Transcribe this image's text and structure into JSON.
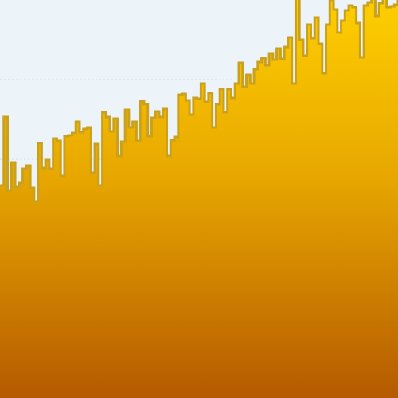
{
  "chart_data": {
    "type": "area",
    "title": "",
    "xlabel": "",
    "ylabel": "",
    "grid": true,
    "legend": "none",
    "ylim": [
      0,
      500
    ],
    "x": [
      0,
      1,
      2,
      3,
      4,
      5,
      6,
      7,
      8,
      9,
      10,
      11,
      12,
      13,
      14,
      15,
      16,
      17,
      18,
      19,
      20,
      21,
      22,
      23,
      24,
      25,
      26,
      27,
      28,
      29,
      30,
      31,
      32,
      33,
      34,
      35,
      36,
      37,
      38,
      39,
      40,
      41,
      42,
      43,
      44,
      45,
      46,
      47,
      48,
      49,
      50,
      51,
      52,
      53,
      54,
      55,
      56,
      57,
      58,
      59,
      60,
      61,
      62,
      63,
      64,
      65,
      66,
      67,
      68,
      69,
      70,
      71,
      72,
      73,
      74,
      75,
      76,
      77,
      78,
      79,
      80,
      81,
      82,
      83,
      84,
      85,
      86,
      87,
      88,
      89,
      90,
      91,
      92,
      93,
      94,
      95,
      96,
      97,
      98,
      99,
      100,
      101,
      102,
      103,
      104,
      105
    ],
    "series": [
      {
        "values": [
          267,
          353,
          260,
          296,
          265,
          270,
          288,
          292,
          264,
          247,
          320,
          289,
          299,
          288,
          326,
          323,
          279,
          329,
          330,
          333,
          347,
          334,
          338,
          340,
          283,
          319,
          267,
          359,
          353,
          335,
          351,
          304,
          322,
          362,
          340,
          347,
          323,
          373,
          369,
          329,
          352,
          360,
          353,
          363,
          304,
          324,
          328,
          381,
          382,
          374,
          356,
          377,
          376,
          395,
          372,
          383,
          340,
          369,
          388,
          359,
          388,
          377,
          395,
          421,
          391,
          406,
          395,
          413,
          422,
          427,
          418,
          433,
          425,
          439,
          426,
          441,
          453,
          395,
          512,
          450,
          430,
          469,
          452,
          478,
          445,
          408,
          469,
          500,
          488,
          459,
          474,
          487,
          493,
          491,
          471,
          428,
          493,
          497,
          506,
          480,
          496,
          506,
          491,
          492,
          494,
          504
        ]
      }
    ]
  },
  "colors": {
    "plot_background": "#edf4f9",
    "gridline": "#d7dde2",
    "area_top": "#ffd000",
    "area_mid": "#e8a800",
    "area_bottom": "#b55a00",
    "line": "#c9a11e"
  }
}
